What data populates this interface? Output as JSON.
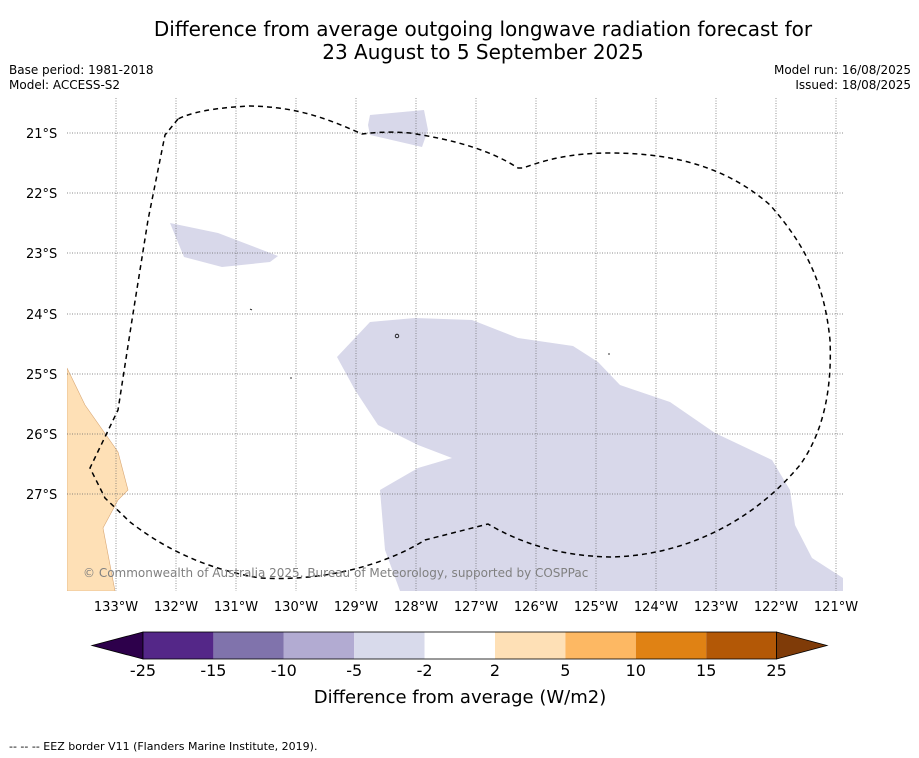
{
  "title": {
    "line1": "Difference from average outgoing longwave radiation forecast for",
    "line2": "23 August to 5 September 2025"
  },
  "meta": {
    "base_period": "Base period: 1981-2018",
    "model": "Model: ACCESS-S2",
    "model_run": "Model run: 16/08/2025",
    "issued": "Issued: 18/08/2025"
  },
  "map": {
    "latitude_labels": [
      "21°S",
      "22°S",
      "23°S",
      "24°S",
      "25°S",
      "26°S",
      "27°S"
    ],
    "longitude_labels": [
      "133°W",
      "132°W",
      "131°W",
      "130°W",
      "129°W",
      "128°W",
      "127°W",
      "126°W",
      "125°W",
      "124°W",
      "123°W",
      "122°W",
      "121°W"
    ],
    "copyright": "© Commonwealth of Australia 2025, Bureau of Meteorology, supported by COSPPac",
    "colors": {
      "anomaly_minus5_minus2": "#d8d8ea",
      "anomaly_2_5": "#fee0b6",
      "eez_border": "#000000",
      "gridline": "#666666"
    }
  },
  "colorbar": {
    "title": "Difference from average (W/m2)",
    "tick_labels": [
      "-25",
      "-15",
      "-10",
      "-5",
      "-2",
      "2",
      "5",
      "10",
      "15",
      "25"
    ],
    "colors": [
      "#2d004b",
      "#542788",
      "#8073ac",
      "#b2abd2",
      "#d8daeb",
      "#ffffff",
      "#fee0b6",
      "#fdb863",
      "#e08214",
      "#b35806",
      "#7f3b08"
    ]
  },
  "footnote": "--  --  -- EEZ border V11 (Flanders Marine Institute, 2019)."
}
